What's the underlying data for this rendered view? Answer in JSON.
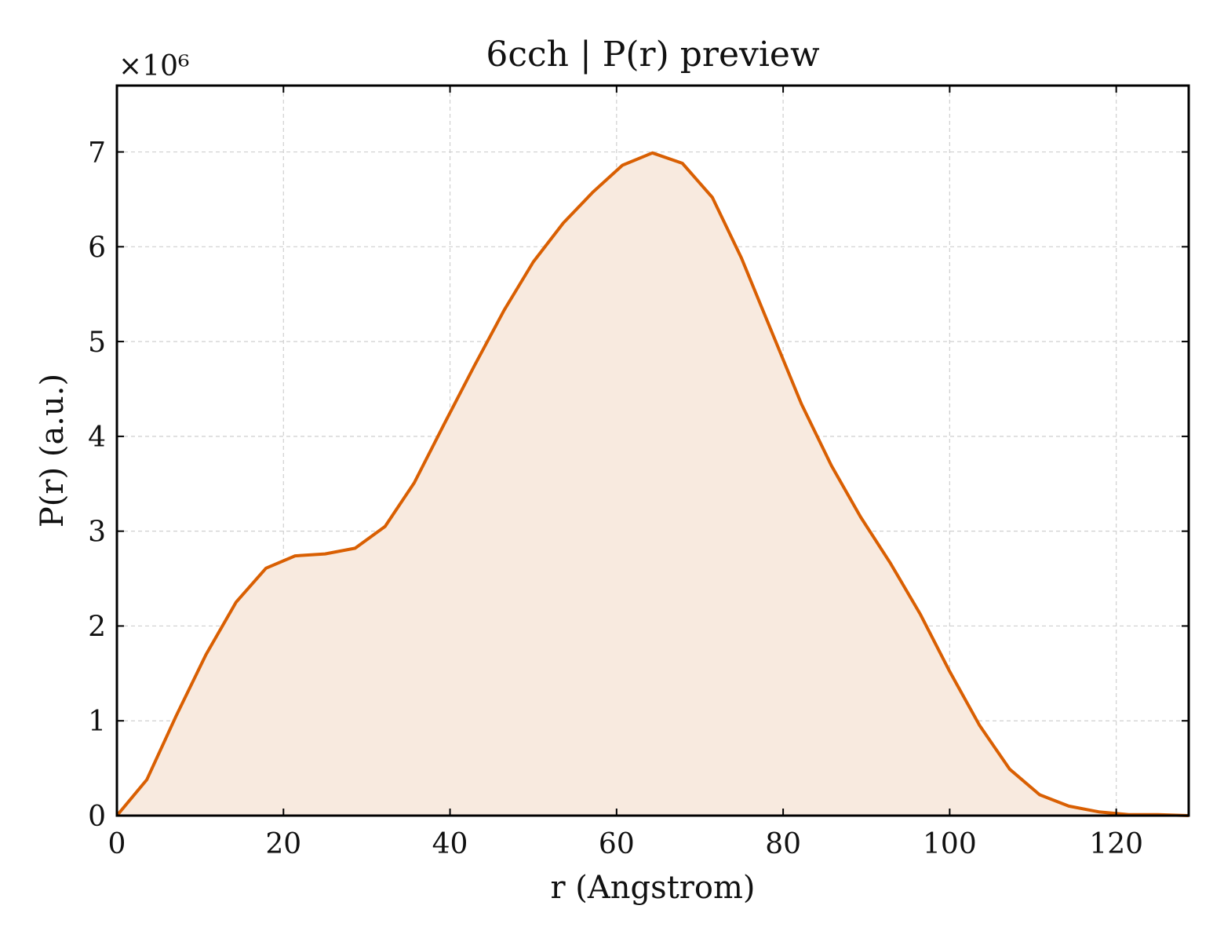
{
  "chart_data": {
    "type": "area",
    "title": "6cch | P(r) preview",
    "xlabel": "r (Angstrom)",
    "ylabel": "P(r) (a.u.)",
    "y_offset_label": "×10⁶",
    "xlim": [
      0,
      128.7
    ],
    "ylim": [
      0,
      7.7
    ],
    "x_ticks": [
      0,
      20,
      40,
      60,
      80,
      100,
      120
    ],
    "y_ticks": [
      0,
      1,
      2,
      3,
      4,
      5,
      6,
      7
    ],
    "grid": true,
    "legend": "none",
    "line_color": "#d95f02",
    "fill_color": "#f8eadf",
    "series": [
      {
        "x": [
          0,
          3.6,
          7.1,
          10.7,
          14.3,
          17.9,
          21.4,
          25.0,
          28.6,
          32.2,
          35.7,
          39.3,
          42.9,
          46.5,
          50.0,
          53.6,
          57.2,
          60.7,
          64.3,
          67.9,
          71.5,
          75.0,
          78.6,
          82.2,
          85.8,
          89.3,
          92.9,
          96.5,
          100.0,
          103.6,
          107.2,
          110.8,
          114.3,
          117.9,
          121.5,
          125.0,
          128.7
        ],
        "y": [
          0.0,
          0.38,
          1.05,
          1.7,
          2.25,
          2.61,
          2.74,
          2.76,
          2.82,
          3.05,
          3.51,
          4.13,
          4.74,
          5.33,
          5.84,
          6.25,
          6.58,
          6.86,
          6.99,
          6.88,
          6.52,
          5.88,
          5.11,
          4.34,
          3.69,
          3.15,
          2.66,
          2.12,
          1.52,
          0.95,
          0.49,
          0.22,
          0.1,
          0.04,
          0.01,
          0.01,
          0.0
        ]
      }
    ]
  }
}
